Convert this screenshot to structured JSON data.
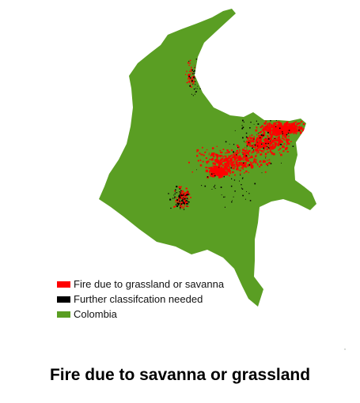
{
  "map": {
    "region": "Colombia",
    "colors": {
      "land": "#5a9e23",
      "fire": "#ff0000",
      "unclassified": "#000000"
    }
  },
  "legend": {
    "items": [
      {
        "label": "Fire due to grassland or savanna",
        "color": "#ff0000"
      },
      {
        "label": "Further classifcation needed",
        "color": "#000000"
      },
      {
        "label": "Colombia",
        "color": "#5a9e23"
      }
    ]
  },
  "title": "Fire due to savanna or grassland"
}
